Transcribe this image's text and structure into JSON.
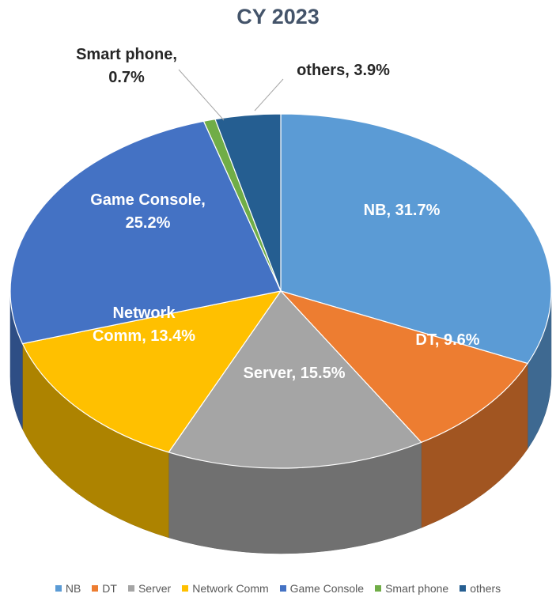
{
  "chart_data": {
    "type": "pie",
    "title": "CY 2023",
    "slices": [
      {
        "name": "NB",
        "value": 31.7,
        "label": "NB, 31.7%",
        "color": "#5b9bd5"
      },
      {
        "name": "DT",
        "value": 9.6,
        "label": "DT, 9.6%",
        "color": "#ed7d31"
      },
      {
        "name": "Server",
        "value": 15.5,
        "label": "Server, 15.5%",
        "color": "#a5a5a5"
      },
      {
        "name": "Network Comm",
        "value": 13.4,
        "label": "Network Comm, 13.4%",
        "color": "#ffc000"
      },
      {
        "name": "Game Console",
        "value": 25.2,
        "label": "Game Console, 25.2%",
        "color": "#4472c4"
      },
      {
        "name": "Smart phone",
        "value": 0.7,
        "label": "Smart phone, 0.7%",
        "color": "#70ad47"
      },
      {
        "name": "others",
        "value": 3.9,
        "label": "others, 3.9%",
        "color": "#255e91"
      }
    ],
    "legend_position": "bottom",
    "style": "3d"
  }
}
